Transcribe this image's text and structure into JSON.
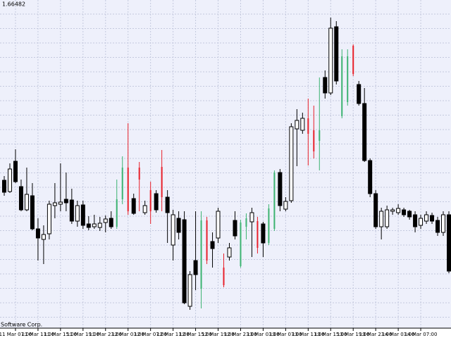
{
  "chart_data": {
    "type": "candlestick",
    "price_label": "1.66482",
    "copyright": "Software Corp.",
    "ylim": [
      1.64642,
      1.66502
    ],
    "grid": true,
    "categories": [
      null,
      null,
      "11 Mar 07:00",
      null,
      null,
      null,
      "11 Mar 11:00",
      null,
      null,
      null,
      "11 Mar 15:00",
      null,
      null,
      null,
      "11 Mar 19:00",
      null,
      null,
      null,
      "11 Mar 23:00",
      null,
      null,
      null,
      "12 Mar 03:00",
      null,
      null,
      null,
      "12 Mar 07:00",
      null,
      null,
      null,
      "12 Mar 11:00",
      null,
      null,
      null,
      "12 Mar 15:00",
      null,
      null,
      null,
      "12 Mar 19:00",
      null,
      null,
      null,
      "12 Mar 23:00",
      null,
      null,
      null,
      "13 Mar 03:00",
      null,
      null,
      null,
      "13 Mar 07:00",
      null,
      null,
      null,
      "13 Mar 11:00",
      null,
      null,
      null,
      "13 Mar 15:00",
      null,
      null,
      null,
      "13 Mar 19:00",
      null,
      null,
      null,
      "13 Mar 23:00",
      null,
      null,
      null,
      "14 Mar 03:00",
      null,
      null,
      null,
      "14 Mar 07:00",
      null,
      null,
      null,
      null,
      null
    ],
    "ohlc": [
      [
        1.65478,
        1.65502,
        1.6539,
        1.6541
      ],
      [
        1.65414,
        1.65574,
        1.65406,
        1.65542
      ],
      [
        1.65586,
        1.65654,
        1.65462,
        1.6547
      ],
      [
        1.65442,
        1.65482,
        1.65302,
        1.6531
      ],
      [
        1.6531,
        1.6555,
        1.65302,
        1.65398
      ],
      [
        1.6539,
        1.65462,
        1.65194,
        1.65202
      ],
      [
        1.65202,
        1.65262,
        1.65022,
        1.6515
      ],
      [
        1.65142,
        1.65222,
        1.65002,
        1.6517
      ],
      [
        1.65174,
        1.65362,
        1.65142,
        1.65342
      ],
      [
        1.65334,
        1.65462,
        1.65262,
        1.6535
      ],
      [
        1.65342,
        1.65574,
        1.65302,
        1.65354
      ],
      [
        1.6537,
        1.65522,
        1.65302,
        1.6535
      ],
      [
        1.65366,
        1.6543,
        1.6523,
        1.65246
      ],
      [
        1.65246,
        1.65362,
        1.65214,
        1.65334
      ],
      [
        1.65338,
        1.65362,
        1.65202,
        1.65222
      ],
      [
        1.6523,
        1.65274,
        1.65194,
        1.6521
      ],
      [
        1.65214,
        1.65282,
        1.65202,
        1.6523
      ],
      [
        1.6521,
        1.6527,
        1.6519,
        1.65234
      ],
      [
        1.65238,
        1.65278,
        1.65182,
        1.65258
      ],
      [
        1.65262,
        1.65302,
        1.65202,
        1.65214
      ],
      [
        1.65214,
        1.65482,
        1.65202,
        1.6537
      ],
      [
        1.6537,
        1.65614,
        1.65342,
        1.6555
      ],
      [
        1.6555,
        1.65802,
        1.65282,
        1.65302
      ],
      [
        1.65374,
        1.65402,
        1.65282,
        1.6529
      ],
      [
        1.6555,
        1.65582,
        1.65302,
        1.65482
      ],
      [
        1.65294,
        1.65362,
        1.65282,
        1.65334
      ],
      [
        1.65422,
        1.6547,
        1.6523,
        1.65302
      ],
      [
        1.65402,
        1.65422,
        1.65294,
        1.6531
      ],
      [
        1.65554,
        1.6565,
        1.65302,
        1.65382
      ],
      [
        1.65382,
        1.65422,
        1.65122,
        1.65294
      ],
      [
        1.6511,
        1.6531,
        1.65022,
        1.65282
      ],
      [
        1.65262,
        1.65302,
        1.65142,
        1.65182
      ],
      [
        1.65254,
        1.65302,
        1.64774,
        1.64782
      ],
      [
        1.64762,
        1.64962,
        1.64742,
        1.64942
      ],
      [
        1.65022,
        1.65302,
        1.64854,
        1.64942
      ],
      [
        1.64862,
        1.65302,
        1.6475,
        1.6525
      ],
      [
        1.6525,
        1.6527,
        1.65002,
        1.65022
      ],
      [
        1.6513,
        1.65182,
        1.64982,
        1.6509
      ],
      [
        1.6515,
        1.65322,
        1.65122,
        1.65302
      ],
      [
        1.64982,
        1.65062,
        1.6487,
        1.64882
      ],
      [
        1.65042,
        1.65122,
        1.65022,
        1.65094
      ],
      [
        1.6525,
        1.65302,
        1.65142,
        1.65162
      ],
      [
        1.6499,
        1.65254,
        1.64982,
        1.65238
      ],
      [
        1.65214,
        1.6529,
        1.65142,
        1.65262
      ],
      [
        1.65242,
        1.65322,
        1.65042,
        1.65294
      ],
      [
        1.65246,
        1.6527,
        1.65062,
        1.65094
      ],
      [
        1.6523,
        1.65242,
        1.65042,
        1.65122
      ],
      [
        1.65122,
        1.65342,
        1.6511,
        1.65318
      ],
      [
        1.65202,
        1.65534,
        1.6519,
        1.65522
      ],
      [
        1.65522,
        1.65542,
        1.65302,
        1.65334
      ],
      [
        1.65314,
        1.65382,
        1.65302,
        1.65358
      ],
      [
        1.65362,
        1.65802,
        1.6535,
        1.65782
      ],
      [
        1.6577,
        1.65882,
        1.65558,
        1.65818
      ],
      [
        1.65762,
        1.65862,
        1.65742,
        1.6583
      ],
      [
        1.6583,
        1.65942,
        1.65562,
        1.65742
      ],
      [
        1.65762,
        1.65902,
        1.65602,
        1.65642
      ],
      [
        1.65702,
        1.66062,
        1.65534,
        1.65762
      ],
      [
        1.66062,
        1.66102,
        1.65942,
        1.65974
      ],
      [
        1.65974,
        1.66402,
        1.65962,
        1.66342
      ],
      [
        1.6635,
        1.66382,
        1.66022,
        1.66042
      ],
      [
        1.65842,
        1.66222,
        1.6583,
        1.66182
      ],
      [
        1.65922,
        1.66222,
        1.65902,
        1.66182
      ],
      [
        1.66242,
        1.6625,
        1.6607,
        1.66082
      ],
      [
        1.66022,
        1.66042,
        1.65902,
        1.65914
      ],
      [
        1.65914,
        1.66002,
        1.65582,
        1.6559
      ],
      [
        1.6559,
        1.65602,
        1.65382,
        1.65402
      ],
      [
        1.65402,
        1.65422,
        1.65202,
        1.65214
      ],
      [
        1.65214,
        1.65322,
        1.65142,
        1.65302
      ],
      [
        1.65214,
        1.65334,
        1.65202,
        1.6531
      ],
      [
        1.65302,
        1.65322,
        1.65282,
        1.6531
      ],
      [
        1.65294,
        1.65342,
        1.65282,
        1.65318
      ],
      [
        1.6531,
        1.65322,
        1.6527,
        1.65282
      ],
      [
        1.65302,
        1.6531,
        1.65254,
        1.6527
      ],
      [
        1.65282,
        1.65302,
        1.65182,
        1.65214
      ],
      [
        1.65222,
        1.65282,
        1.65202,
        1.65262
      ],
      [
        1.65246,
        1.65302,
        1.6523,
        1.65282
      ],
      [
        1.65278,
        1.65294,
        1.6523,
        1.65246
      ],
      [
        1.6525,
        1.6527,
        1.65162,
        1.65182
      ],
      [
        1.65182,
        1.65302,
        1.65162,
        1.65282
      ],
      [
        1.65282,
        1.65302,
        1.6495,
        1.64962
      ]
    ],
    "colors": [
      "#000000",
      "#ffffff",
      "#000000",
      "#000000",
      "#ffffff",
      "#000000",
      "#000000",
      "#ffffff",
      "#ffffff",
      "#ffffff",
      "#ffffff",
      "#000000",
      "#000000",
      "#ffffff",
      "#000000",
      "#000000",
      "#ffffff",
      "#ffffff",
      "#ffffff",
      "#000000",
      "#3cb371",
      "#3cb371",
      "#e8202a",
      "#000000",
      "#e8202a",
      "#ffffff",
      "#e8202a",
      "#000000",
      "#e8202a",
      "#000000",
      "#ffffff",
      "#000000",
      "#000000",
      "#ffffff",
      "#000000",
      "#3cb371",
      "#e8202a",
      "#000000",
      "#ffffff",
      "#e8202a",
      "#ffffff",
      "#000000",
      "#3cb371",
      "#3cb371",
      "#ffffff",
      "#e8202a",
      "#000000",
      "#3cb371",
      "#3cb371",
      "#000000",
      "#ffffff",
      "#ffffff",
      "#ffffff",
      "#ffffff",
      "#e8202a",
      "#e8202a",
      "#3cb371",
      "#000000",
      "#ffffff",
      "#000000",
      "#3cb371",
      "#3cb371",
      "#e8202a",
      "#000000",
      "#000000",
      "#000000",
      "#000000",
      "#ffffff",
      "#ffffff",
      "#ffffff",
      "#ffffff",
      "#000000",
      "#000000",
      "#000000",
      "#ffffff",
      "#ffffff",
      "#000000",
      "#000000",
      "#ffffff",
      "#000000"
    ]
  }
}
